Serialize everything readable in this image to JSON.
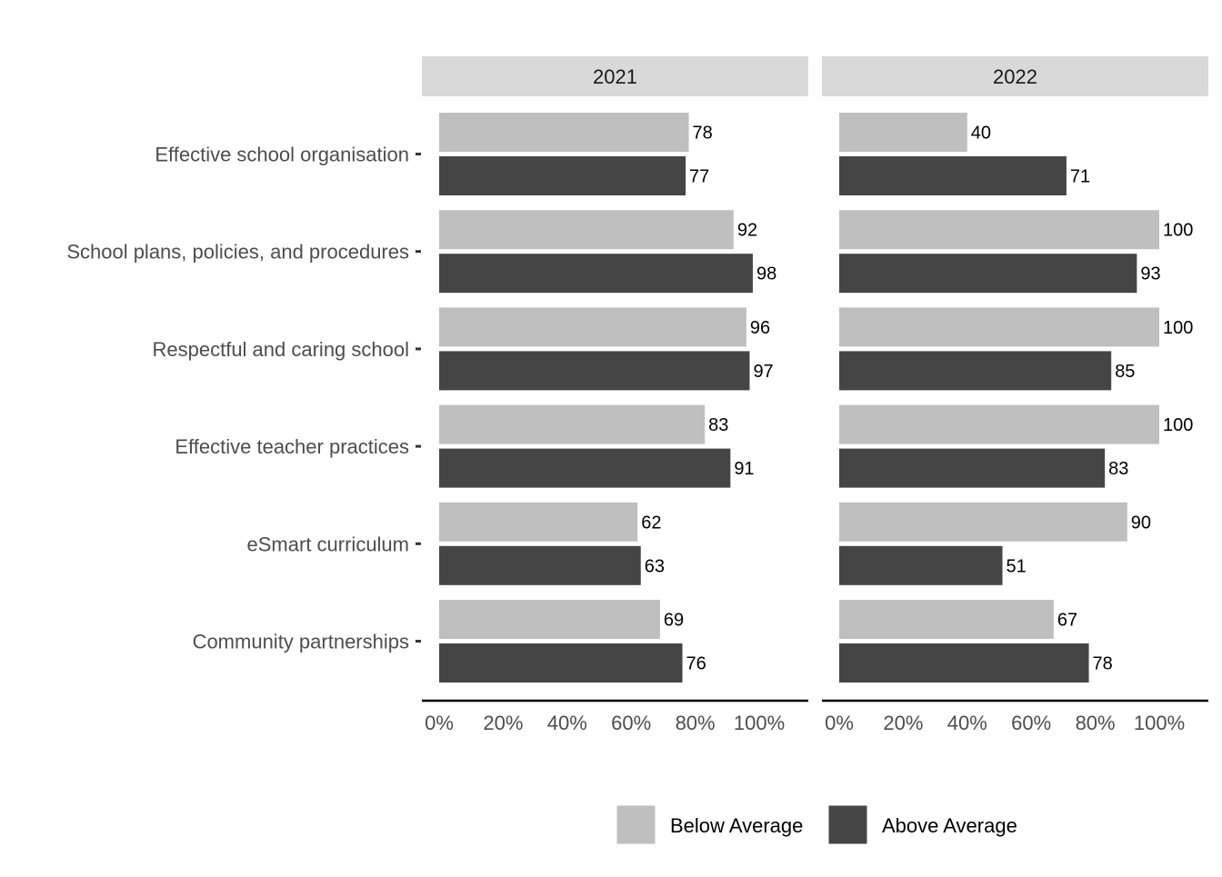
{
  "chart_data": {
    "type": "bar",
    "orientation": "horizontal",
    "facets": [
      "2021",
      "2022"
    ],
    "categories": [
      "Effective school organisation",
      "School plans, policies, and procedures",
      "Respectful and caring school",
      "Effective teacher practices",
      "eSmart curriculum",
      "Community partnerships"
    ],
    "series": [
      {
        "name": "Below Average",
        "color": "#bfbfbf",
        "values": {
          "2021": [
            78,
            92,
            96,
            83,
            62,
            69
          ],
          "2022": [
            40,
            100,
            100,
            100,
            90,
            67
          ]
        }
      },
      {
        "name": "Above Average",
        "color": "#454545",
        "values": {
          "2021": [
            77,
            98,
            97,
            91,
            63,
            76
          ],
          "2022": [
            71,
            93,
            85,
            83,
            51,
            78
          ]
        }
      }
    ],
    "x_ticks": [
      "0%",
      "20%",
      "40%",
      "60%",
      "80%",
      "100%"
    ],
    "xlim": [
      0,
      100
    ],
    "grid": false,
    "legend_position": "bottom",
    "title": "",
    "xlabel": "",
    "ylabel": ""
  }
}
